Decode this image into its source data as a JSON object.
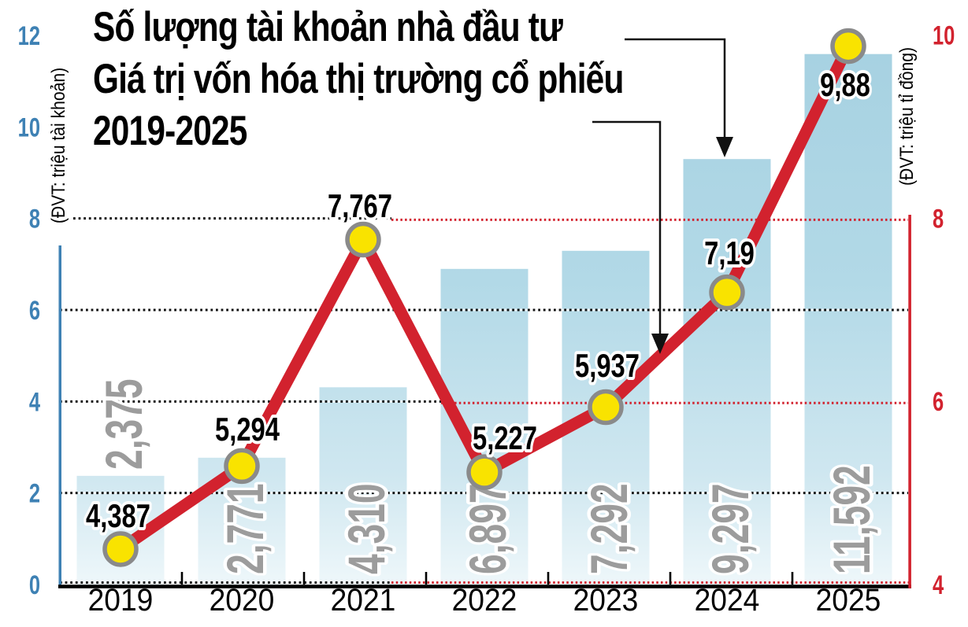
{
  "title": {
    "line1": "Số lượng tài khoản nhà đầu tư",
    "line2": "Giá trị vốn hóa thị trường cổ phiếu",
    "line3": "2019-2025"
  },
  "left_axis": {
    "unit_label": "(ĐVT: triệu tài khoản)",
    "ticks": [
      "0",
      "2",
      "4",
      "6",
      "8",
      "10",
      "12"
    ],
    "color": "#3e81b4"
  },
  "right_axis": {
    "unit_label": "(ĐVT: triệu tỉ đồng)",
    "ticks": [
      "4",
      "6",
      "8",
      "10"
    ],
    "color": "#d2222e"
  },
  "chart_data": {
    "type": "combo-bar-line",
    "categories": [
      "2019",
      "2020",
      "2021",
      "2022",
      "2023",
      "2024",
      "2025"
    ],
    "series": [
      {
        "name": "Số lượng tài khoản nhà đầu tư",
        "chart": "bar",
        "axis": "left",
        "unit": "triệu tài khoản",
        "values": [
          2.375,
          2.771,
          4.31,
          6.897,
          7.292,
          9.297,
          11.592
        ],
        "value_labels": [
          "2,375",
          "2,771",
          "4,310",
          "6,897",
          "7,292",
          "9,297",
          "11,592"
        ],
        "bar_color": "#aad3e2"
      },
      {
        "name": "Giá trị vốn hóa thị trường cổ phiếu",
        "chart": "line",
        "axis": "right",
        "unit": "triệu tỉ đồng",
        "values": [
          4.387,
          5.294,
          7.767,
          5.227,
          5.937,
          7.19,
          9.88
        ],
        "value_labels": [
          "4,387",
          "5,294",
          "7,767",
          "5,227",
          "5,937",
          "7,19",
          "9,88"
        ],
        "line_color": "#d2222e",
        "marker_fill": "#f9e300",
        "marker_ring": "#8a8a8a"
      }
    ],
    "left_axis_range": [
      0,
      12
    ],
    "right_axis_range": [
      4,
      10
    ],
    "gridlines": {
      "left_dotted_black": [
        2,
        4,
        6,
        8
      ],
      "right_dotted_red": [
        4,
        6,
        8
      ]
    },
    "legend_position": "none",
    "callouts": [
      {
        "from": "title-line-1",
        "points_to": "2024 bar"
      },
      {
        "from": "title-line-2",
        "points_to": "line segment 2023-2024"
      }
    ]
  },
  "colors": {
    "bar_gradient_top": "#a6d1e1",
    "bar_gradient_mid": "#b2d9e7",
    "bar_gradient_low": "#cfe7f0",
    "bar_gradient_bottom": "#eef7fa",
    "grid_black": "#111111",
    "grid_red": "#d2222e",
    "bar_value_gray": "#9c9c9c",
    "axis_left_line": "#3e81b4",
    "axis_bottom_line": "#000000",
    "axis_right_line": "#d2222e",
    "marker_yellow": "#f9e300",
    "marker_ring_gray": "#8a8a8a"
  }
}
